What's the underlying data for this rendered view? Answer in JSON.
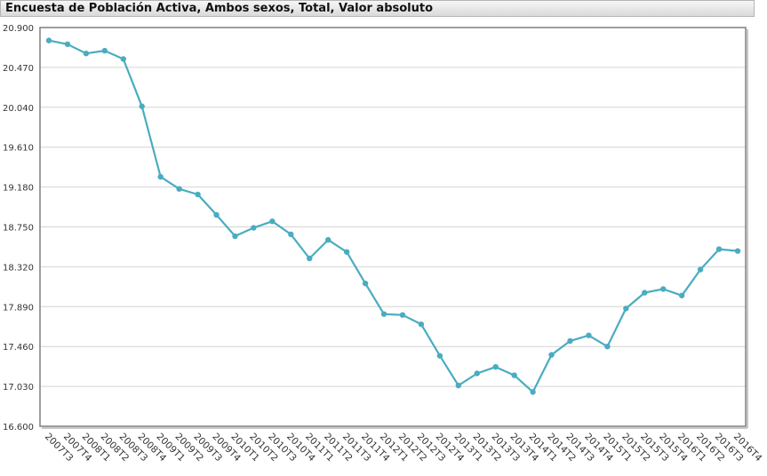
{
  "window": {
    "title": "Encuesta de Población Activa, Ambos sexos, Total, Valor absoluto"
  },
  "colors": {
    "line": "#4aacc0",
    "point": "#4aacc0",
    "grid": "#d4d4d4",
    "frame": "#7f7f7f"
  },
  "chart_data": {
    "type": "line",
    "title": "Encuesta de Población Activa, Ambos sexos, Total, Valor absoluto",
    "xlabel": "",
    "ylabel": "",
    "ylim": [
      16600,
      20900
    ],
    "yticks": [
      16600,
      17030,
      17460,
      17890,
      18320,
      18750,
      19180,
      19610,
      20040,
      20470,
      20900
    ],
    "ytick_labels": [
      "16.600",
      "17.030",
      "17.460",
      "17.890",
      "18.320",
      "18.750",
      "19.180",
      "19.610",
      "20.040",
      "20.470",
      "20.900"
    ],
    "grid": true,
    "legend": "none",
    "categories": [
      "2007T3",
      "2007T4",
      "2008T1",
      "2008T2",
      "2008T3",
      "2008T4",
      "2009T1",
      "2009T2",
      "2009T3",
      "2009T4",
      "2010T1",
      "2010T2",
      "2010T3",
      "2010T4",
      "2011T1",
      "2011T2",
      "2011T3",
      "2011T4",
      "2012T1",
      "2012T2",
      "2012T3",
      "2012T4",
      "2013T1",
      "2013T2",
      "2013T3",
      "2013T4",
      "2014T1",
      "2014T2",
      "2014T3",
      "2014T4",
      "2015T1",
      "2015T2",
      "2015T3",
      "2015T4",
      "2016T1",
      "2016T2",
      "2016T3",
      "2016T4"
    ],
    "values": [
      20760,
      20720,
      20620,
      20650,
      20560,
      20050,
      19290,
      19160,
      19100,
      18880,
      18650,
      18740,
      18810,
      18670,
      18410,
      18610,
      18480,
      18140,
      17810,
      17800,
      17700,
      17360,
      17040,
      17170,
      17240,
      17150,
      16970,
      17370,
      17520,
      17580,
      17460,
      17870,
      18040,
      18080,
      18010,
      18290,
      18510,
      18490
    ]
  }
}
